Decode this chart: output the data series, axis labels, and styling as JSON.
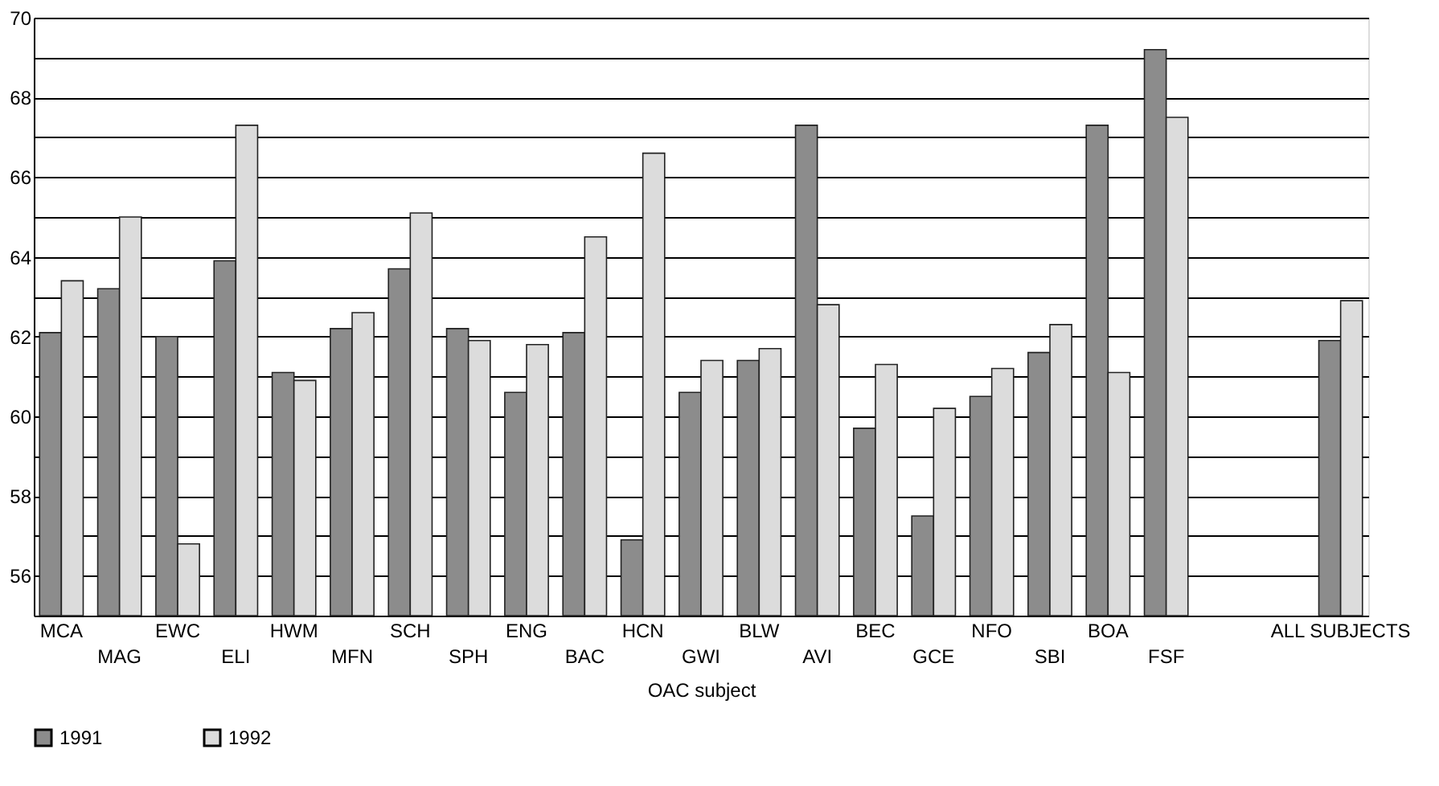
{
  "chart_data": {
    "type": "bar",
    "xlabel": "OAC subject",
    "categories": [
      "MCA",
      "MAG",
      "EWC",
      "ELI",
      "HWM",
      "MFN",
      "SCH",
      "SPH",
      "ENG",
      "BAC",
      "HCN",
      "GWI",
      "BLW",
      "AVI",
      "BEC",
      "GCE",
      "NFO",
      "SBI",
      "BOA",
      "FSF",
      null,
      null,
      "ALL SUBJECTS"
    ],
    "series": [
      {
        "name": "1991",
        "color": "#8c8c8c",
        "values": [
          62.1,
          63.2,
          62.0,
          63.9,
          61.1,
          62.2,
          63.7,
          62.2,
          60.6,
          62.1,
          56.9,
          60.6,
          61.4,
          67.3,
          59.7,
          57.5,
          60.5,
          61.6,
          67.3,
          69.2,
          null,
          null,
          61.9
        ]
      },
      {
        "name": "1992",
        "color": "#dcdcdc",
        "values": [
          63.4,
          65.0,
          56.8,
          67.3,
          60.9,
          62.6,
          65.1,
          61.9,
          61.8,
          64.5,
          66.6,
          61.4,
          61.7,
          62.8,
          61.3,
          60.2,
          61.2,
          62.3,
          61.1,
          67.5,
          null,
          null,
          62.9
        ]
      }
    ],
    "ylim": [
      55,
      70
    ],
    "yticks": [
      {
        "value": 55,
        "label": null
      },
      56,
      {
        "value": 57,
        "label": null
      },
      58,
      {
        "value": 59,
        "label": null
      },
      60,
      {
        "value": 61,
        "label": null
      },
      62,
      {
        "value": 63,
        "label": null
      },
      64,
      {
        "value": 65,
        "label": null
      },
      66,
      {
        "value": 67,
        "label": null
      },
      68,
      {
        "value": 69,
        "label": null
      },
      70
    ],
    "grid": "y",
    "legend": "bottom"
  }
}
